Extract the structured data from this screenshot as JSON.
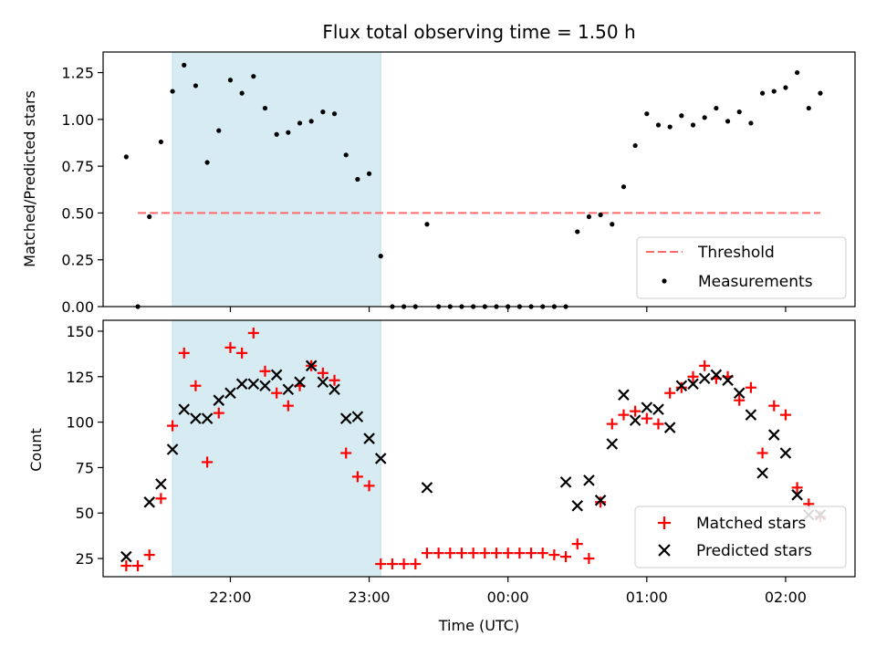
{
  "chart_data": [
    {
      "type": "scatter",
      "title": "Flux total observing time = 1.50 h",
      "xlabel": "",
      "ylabel": "Matched/Predicted stars",
      "ylim": [
        0,
        1.36
      ],
      "yticks": [
        0.0,
        0.25,
        0.5,
        0.75,
        1.0,
        1.25
      ],
      "ytick_labels": [
        "0.00",
        "0.25",
        "0.50",
        "0.75",
        "1.00",
        "1.25"
      ],
      "shaded_interval": {
        "start": "21:35",
        "end": "23:05",
        "color": "#add8e6"
      },
      "threshold": {
        "name": "Threshold",
        "value": 0.5,
        "x_start": "21:20",
        "x_end": "02:15",
        "color": "#ff6b6b"
      },
      "legend_position": "lower right",
      "series": [
        {
          "name": "Measurements",
          "marker": "dot",
          "color": "#000000",
          "x": [
            "21:15",
            "21:20",
            "21:25",
            "21:30",
            "21:35",
            "21:40",
            "21:45",
            "21:50",
            "21:55",
            "22:00",
            "22:05",
            "22:10",
            "22:15",
            "22:20",
            "22:25",
            "22:30",
            "22:35",
            "22:40",
            "22:45",
            "22:50",
            "22:55",
            "23:00",
            "23:05",
            "23:10",
            "23:15",
            "23:20",
            "23:25",
            "23:30",
            "23:35",
            "23:40",
            "23:45",
            "23:50",
            "23:55",
            "00:00",
            "00:05",
            "00:10",
            "00:15",
            "00:20",
            "00:25",
            "00:30",
            "00:35",
            "00:40",
            "00:45",
            "00:50",
            "00:55",
            "01:00",
            "01:05",
            "01:10",
            "01:15",
            "01:20",
            "01:25",
            "01:30",
            "01:35",
            "01:40",
            "01:45",
            "01:50",
            "01:55",
            "02:00",
            "02:05",
            "02:10",
            "02:15"
          ],
          "y": [
            0.8,
            0.0,
            0.48,
            0.88,
            1.15,
            1.29,
            1.18,
            0.77,
            0.94,
            1.21,
            1.14,
            1.23,
            1.06,
            0.92,
            0.93,
            0.98,
            0.99,
            1.04,
            1.03,
            0.81,
            0.68,
            0.71,
            0.27,
            0.0,
            0.0,
            0.0,
            0.44,
            0.0,
            0.0,
            0.0,
            0.0,
            0.0,
            0.0,
            0.0,
            0.0,
            0.0,
            0.0,
            0.0,
            0.0,
            0.4,
            0.48,
            0.49,
            0.44,
            0.64,
            0.86,
            1.03,
            0.97,
            0.96,
            1.02,
            0.97,
            1.01,
            1.06,
            0.99,
            1.04,
            0.98,
            1.14,
            1.15,
            1.17,
            1.25,
            1.06,
            1.14
          ]
        }
      ]
    },
    {
      "type": "scatter",
      "title": "",
      "xlabel": "Time (UTC)",
      "ylabel": "Count",
      "ylim": [
        15,
        156
      ],
      "yticks": [
        25,
        50,
        75,
        100,
        125,
        150
      ],
      "ytick_labels": [
        "25",
        "50",
        "75",
        "100",
        "125",
        "150"
      ],
      "xticks": [
        "22:00",
        "23:00",
        "00:00",
        "01:00",
        "02:00"
      ],
      "xlim": [
        "21:05",
        "02:30"
      ],
      "shaded_interval": {
        "start": "21:35",
        "end": "23:05",
        "color": "#add8e6"
      },
      "legend_position": "lower right",
      "series": [
        {
          "name": "Matched stars",
          "marker": "plus",
          "color": "#ff0000",
          "x": [
            "21:15",
            "21:20",
            "21:25",
            "21:30",
            "21:35",
            "21:40",
            "21:45",
            "21:50",
            "21:55",
            "22:00",
            "22:05",
            "22:10",
            "22:15",
            "22:20",
            "22:25",
            "22:30",
            "22:35",
            "22:40",
            "22:45",
            "22:50",
            "22:55",
            "23:00",
            "23:05",
            "23:10",
            "23:15",
            "23:20",
            "23:25",
            "23:30",
            "23:35",
            "23:40",
            "23:45",
            "23:50",
            "23:55",
            "00:00",
            "00:05",
            "00:10",
            "00:15",
            "00:20",
            "00:25",
            "00:30",
            "00:35",
            "00:40",
            "00:45",
            "00:50",
            "00:55",
            "01:00",
            "01:05",
            "01:10",
            "01:15",
            "01:20",
            "01:25",
            "01:30",
            "01:35",
            "01:40",
            "01:45",
            "01:50",
            "01:55",
            "02:00",
            "02:05",
            "02:10",
            "02:15"
          ],
          "y": [
            21,
            21,
            27,
            58,
            98,
            138,
            120,
            78,
            105,
            141,
            138,
            149,
            128,
            116,
            109,
            120,
            131,
            127,
            123,
            83,
            70,
            65,
            22,
            22,
            22,
            22,
            28,
            28,
            28,
            28,
            28,
            28,
            28,
            28,
            28,
            28,
            28,
            27,
            26,
            33,
            25,
            56,
            99,
            104,
            106,
            102,
            99,
            116,
            119,
            125,
            131,
            124,
            125,
            112,
            119,
            83,
            109,
            104,
            64,
            55,
            48
          ]
        },
        {
          "name": "Predicted stars",
          "marker": "x",
          "color": "#000000",
          "x": [
            "21:15",
            "21:25",
            "21:30",
            "21:35",
            "21:40",
            "21:45",
            "21:50",
            "21:55",
            "22:00",
            "22:05",
            "22:10",
            "22:15",
            "22:20",
            "22:25",
            "22:30",
            "22:35",
            "22:40",
            "22:45",
            "22:50",
            "22:55",
            "23:00",
            "23:05",
            "23:25",
            "00:25",
            "00:30",
            "00:35",
            "00:40",
            "00:45",
            "00:50",
            "00:55",
            "01:00",
            "01:05",
            "01:10",
            "01:15",
            "01:20",
            "01:25",
            "01:30",
            "01:35",
            "01:40",
            "01:45",
            "01:50",
            "01:55",
            "02:00",
            "02:05",
            "02:10",
            "02:15"
          ],
          "y": [
            26,
            56,
            66,
            85,
            107,
            102,
            102,
            112,
            116,
            121,
            121,
            120,
            126,
            118,
            122,
            131,
            122,
            118,
            102,
            103,
            91,
            80,
            64,
            67,
            54,
            68,
            57,
            88,
            115,
            101,
            108,
            107,
            97,
            120,
            121,
            124,
            126,
            123,
            116,
            104,
            72,
            93,
            83,
            60,
            49,
            49
          ]
        }
      ]
    }
  ]
}
